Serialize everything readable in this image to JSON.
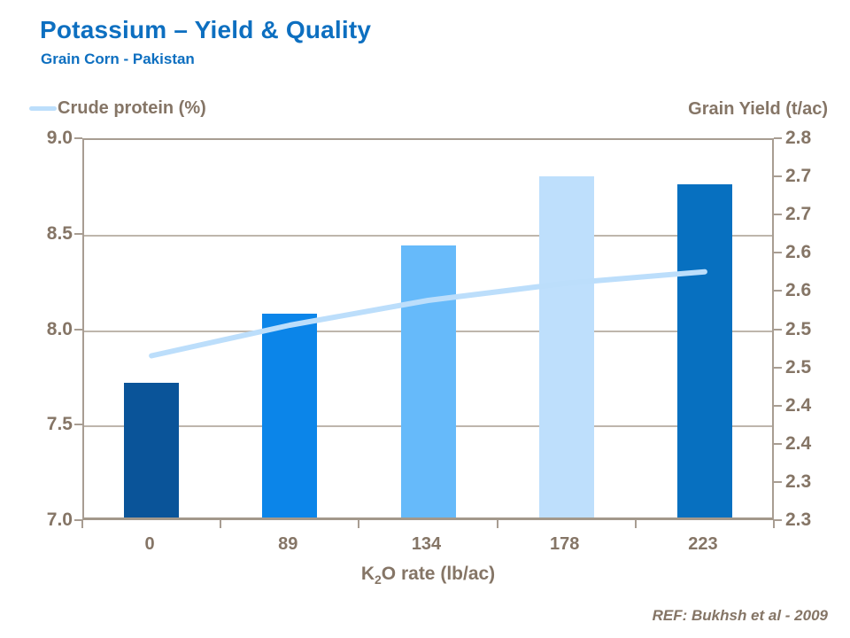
{
  "slide": {
    "title": "Potassium – Yield & Quality",
    "subtitle": "Grain Corn - Pakistan",
    "ref": "REF:  Bukhsh et al - 2009"
  },
  "legend": {
    "crude_protein_label": "Crude protein (%)"
  },
  "axes": {
    "right_axis_title": "Grain Yield (t/ac)",
    "x_title_k": "K",
    "x_title_sub": "2",
    "x_title_rest": "O rate (lb/ac)",
    "left_tick_labels": [
      "9.0",
      "8.5",
      "8.0",
      "7.5",
      "7.0"
    ],
    "right_tick_labels": [
      "2.8",
      "2.7",
      "2.7",
      "2.6",
      "2.6",
      "2.5",
      "2.5",
      "2.4",
      "2.4",
      "2.3",
      "2.3"
    ]
  },
  "colors": {
    "title_blue": "#0d6fc0",
    "chart_text_brown": "#857566",
    "axis_frame": "#a89d92",
    "gridline": "#beb6ac",
    "line_light_blue": "#bcdefb",
    "bar_colors": [
      "#0a5499",
      "#0b85e9",
      "#66bafa",
      "#bedffc",
      "#0770c0"
    ]
  },
  "chart_data": {
    "type": "bar",
    "categories": [
      "0",
      "89",
      "134",
      "178",
      "223"
    ],
    "series": [
      {
        "name": "Grain Yield (t/ac)",
        "type": "bar",
        "axis": "right",
        "values": [
          2.48,
          2.57,
          2.66,
          2.75,
          2.74
        ]
      },
      {
        "name": "Crude protein (%)",
        "type": "line",
        "axis": "left",
        "values": [
          7.87,
          8.03,
          8.16,
          8.25,
          8.31
        ]
      }
    ],
    "title": "Potassium – Yield & Quality",
    "subtitle": "Grain Corn - Pakistan",
    "xlabel": "K2O rate (lb/ac)",
    "left_axis": {
      "label": "Crude protein (%)",
      "min": 7.0,
      "max": 9.0,
      "tick_step": 0.5
    },
    "right_axis": {
      "label": "Grain Yield (t/ac)",
      "min": 2.3,
      "max": 2.8,
      "tick_step": 0.05
    },
    "grid": "horizontal gridlines at left-axis major ticks (8.5, 8.0, 7.5)",
    "legend_position": "top-left (line series only)",
    "annotations": [
      "REF:  Bukhsh et al - 2009"
    ]
  }
}
